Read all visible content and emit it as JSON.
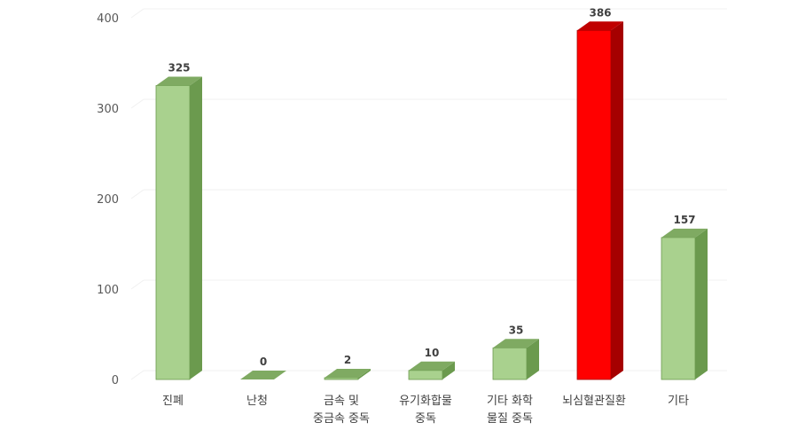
{
  "chart_data": {
    "type": "bar",
    "style": "3d-column",
    "categories": [
      [
        "진폐"
      ],
      [
        "난청"
      ],
      [
        "금속 및",
        "중금속 중독"
      ],
      [
        "유기화합물",
        "중독"
      ],
      [
        "기타 화학",
        "물질 중독"
      ],
      [
        "뇌심혈관질환"
      ],
      [
        "기타"
      ]
    ],
    "values": [
      325,
      0,
      2,
      10,
      35,
      386,
      157
    ],
    "data_labels": [
      "325",
      "0",
      "2",
      "10",
      "35",
      "386",
      "157"
    ],
    "ylim": [
      0,
      400
    ],
    "yticks": [
      0,
      100,
      200,
      300,
      400
    ],
    "ytick_labels": [
      "0",
      "100",
      "200",
      "300",
      "400"
    ],
    "grid": true,
    "legend": "none",
    "colors": {
      "default_front": "#a9d18e",
      "default_side": "#6b9a4e",
      "default_top": "#7faa62",
      "highlight_front": "#ff0000",
      "highlight_side": "#a50000",
      "highlight_top": "#c00000",
      "highlight_index": 5,
      "grid": "#f0f0f0"
    }
  }
}
